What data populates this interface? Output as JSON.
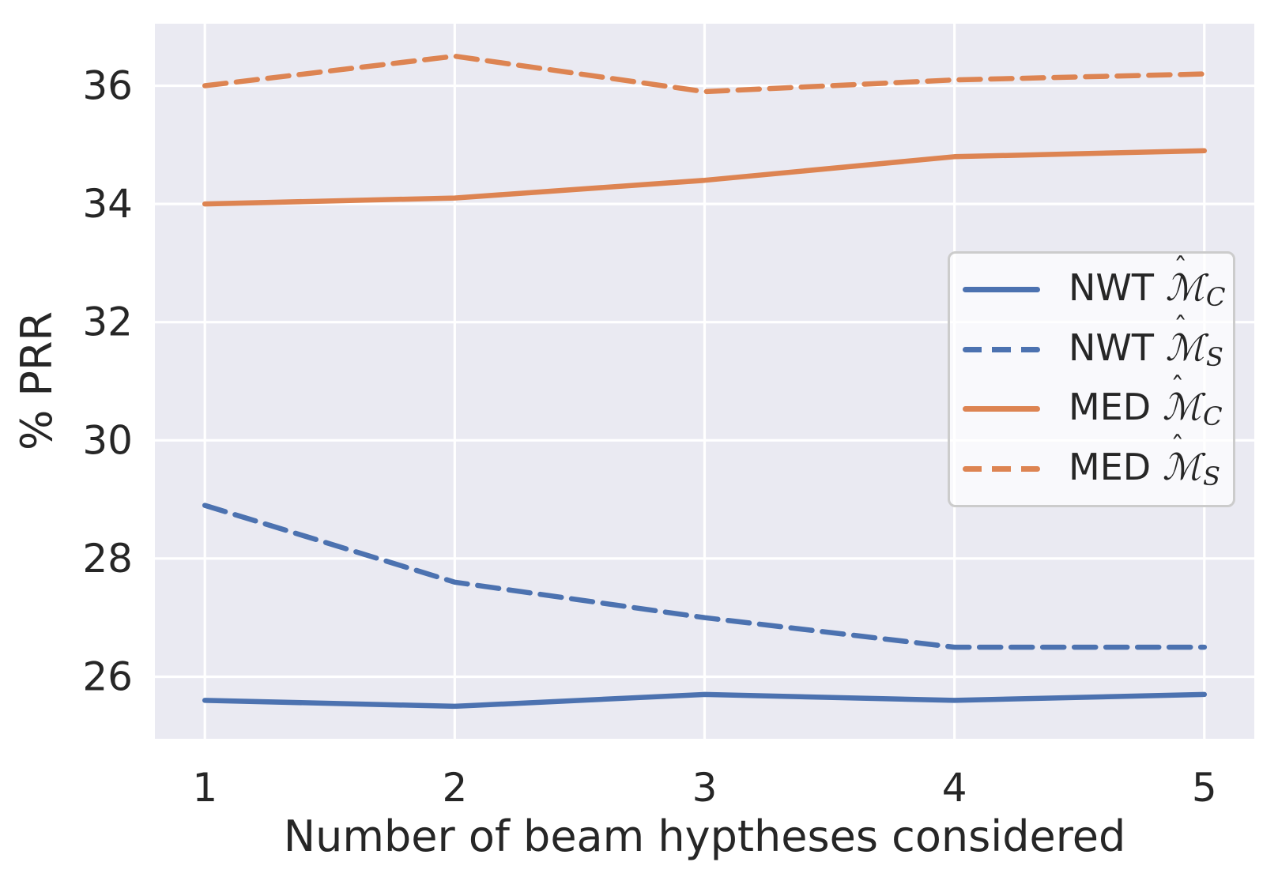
{
  "figure": {
    "background": "#ffffff",
    "axes_background": "#eaeaf2",
    "grid_color": "#ffffff",
    "text_color": "#262626",
    "accent_blue": "#4C72B0",
    "accent_orange": "#DD8452"
  },
  "chart_data": {
    "type": "line",
    "title": "",
    "xlabel": "Number of beam hyptheses considered",
    "ylabel": "% PRR",
    "x": [
      1,
      2,
      3,
      4,
      5
    ],
    "x_ticks": [
      "1",
      "2",
      "3",
      "4",
      "5"
    ],
    "y_ticks": [
      "26",
      "28",
      "30",
      "32",
      "34",
      "36"
    ],
    "y_tick_values": [
      26,
      28,
      30,
      32,
      34,
      36
    ],
    "xlim": [
      0.8,
      5.2
    ],
    "ylim": [
      24.95,
      37.05
    ],
    "grid": true,
    "legend_position": "center-right",
    "series": [
      {
        "id": "nwt-mc",
        "label_prefix": "NWT",
        "label_symbol": "ℳ",
        "label_hat": "ˆ",
        "label_sub": "C",
        "line_style": "solid",
        "color": "#4C72B0",
        "values": [
          25.6,
          25.5,
          25.7,
          25.6,
          25.7
        ]
      },
      {
        "id": "nwt-ms",
        "label_prefix": "NWT",
        "label_symbol": "ℳ",
        "label_hat": "ˆ",
        "label_sub": "S",
        "line_style": "dashed",
        "color": "#4C72B0",
        "values": [
          28.9,
          27.6,
          27.0,
          26.5,
          26.5
        ]
      },
      {
        "id": "med-mc",
        "label_prefix": "MED",
        "label_symbol": "ℳ",
        "label_hat": "ˆ",
        "label_sub": "C",
        "line_style": "solid",
        "color": "#DD8452",
        "values": [
          34.0,
          34.1,
          34.4,
          34.8,
          34.9
        ]
      },
      {
        "id": "med-ms",
        "label_prefix": "MED",
        "label_symbol": "ℳ",
        "label_hat": "ˆ",
        "label_sub": "S",
        "line_style": "dashed",
        "color": "#DD8452",
        "values": [
          36.0,
          36.5,
          35.9,
          36.1,
          36.2
        ]
      }
    ]
  }
}
